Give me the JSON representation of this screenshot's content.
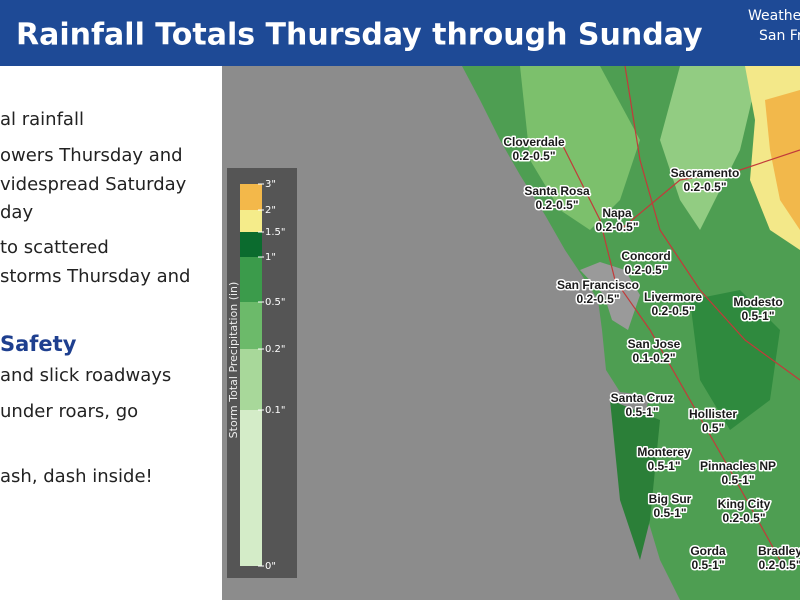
{
  "header": {
    "title": "Rainfall Totals Thursday through Sunday",
    "office_lines": [
      "Weathe",
      "San Fr"
    ]
  },
  "left_panel": {
    "lines": [
      "al rainfall",
      "owers Thursday and",
      "videspread Saturday",
      "day",
      "to scattered",
      "storms Thursday and"
    ],
    "safety_heading": "Safety",
    "safety_lines": [
      "and slick roadways",
      "under roars, go",
      "ash, dash inside!"
    ]
  },
  "legend": {
    "title": "Storm Total Precipitation (in)",
    "labels": [
      "3\"",
      "2\"",
      "1.5\"",
      "1\"",
      "0.5\"",
      "0.2\"",
      "0.1\"",
      "0\""
    ]
  },
  "map": {
    "cities": [
      {
        "name": "Cloverdale",
        "range": "0.2-0.5\""
      },
      {
        "name": "Santa Rosa",
        "range": "0.2-0.5\""
      },
      {
        "name": "Napa",
        "range": "0.2-0.5\""
      },
      {
        "name": "Sacramento",
        "range": "0.2-0.5\""
      },
      {
        "name": "Concord",
        "range": "0.2-0.5\""
      },
      {
        "name": "San Francisco",
        "range": "0.2-0.5\""
      },
      {
        "name": "Livermore",
        "range": "0.2-0.5\""
      },
      {
        "name": "Modesto",
        "range": "0.5-1\""
      },
      {
        "name": "San Jose",
        "range": "0.1-0.2\""
      },
      {
        "name": "Santa Cruz",
        "range": "0.5-1\""
      },
      {
        "name": "Hollister",
        "range": "0.5\""
      },
      {
        "name": "Monterey",
        "range": "0.5-1\""
      },
      {
        "name": "Pinnacles NP",
        "range": "0.5-1\""
      },
      {
        "name": "Big Sur",
        "range": "0.5-1\""
      },
      {
        "name": "King City",
        "range": "0.2-0.5\""
      },
      {
        "name": "Gorda",
        "range": "0.5-1\""
      },
      {
        "name": "Bradley",
        "range": "0.2-0.5\""
      }
    ]
  }
}
